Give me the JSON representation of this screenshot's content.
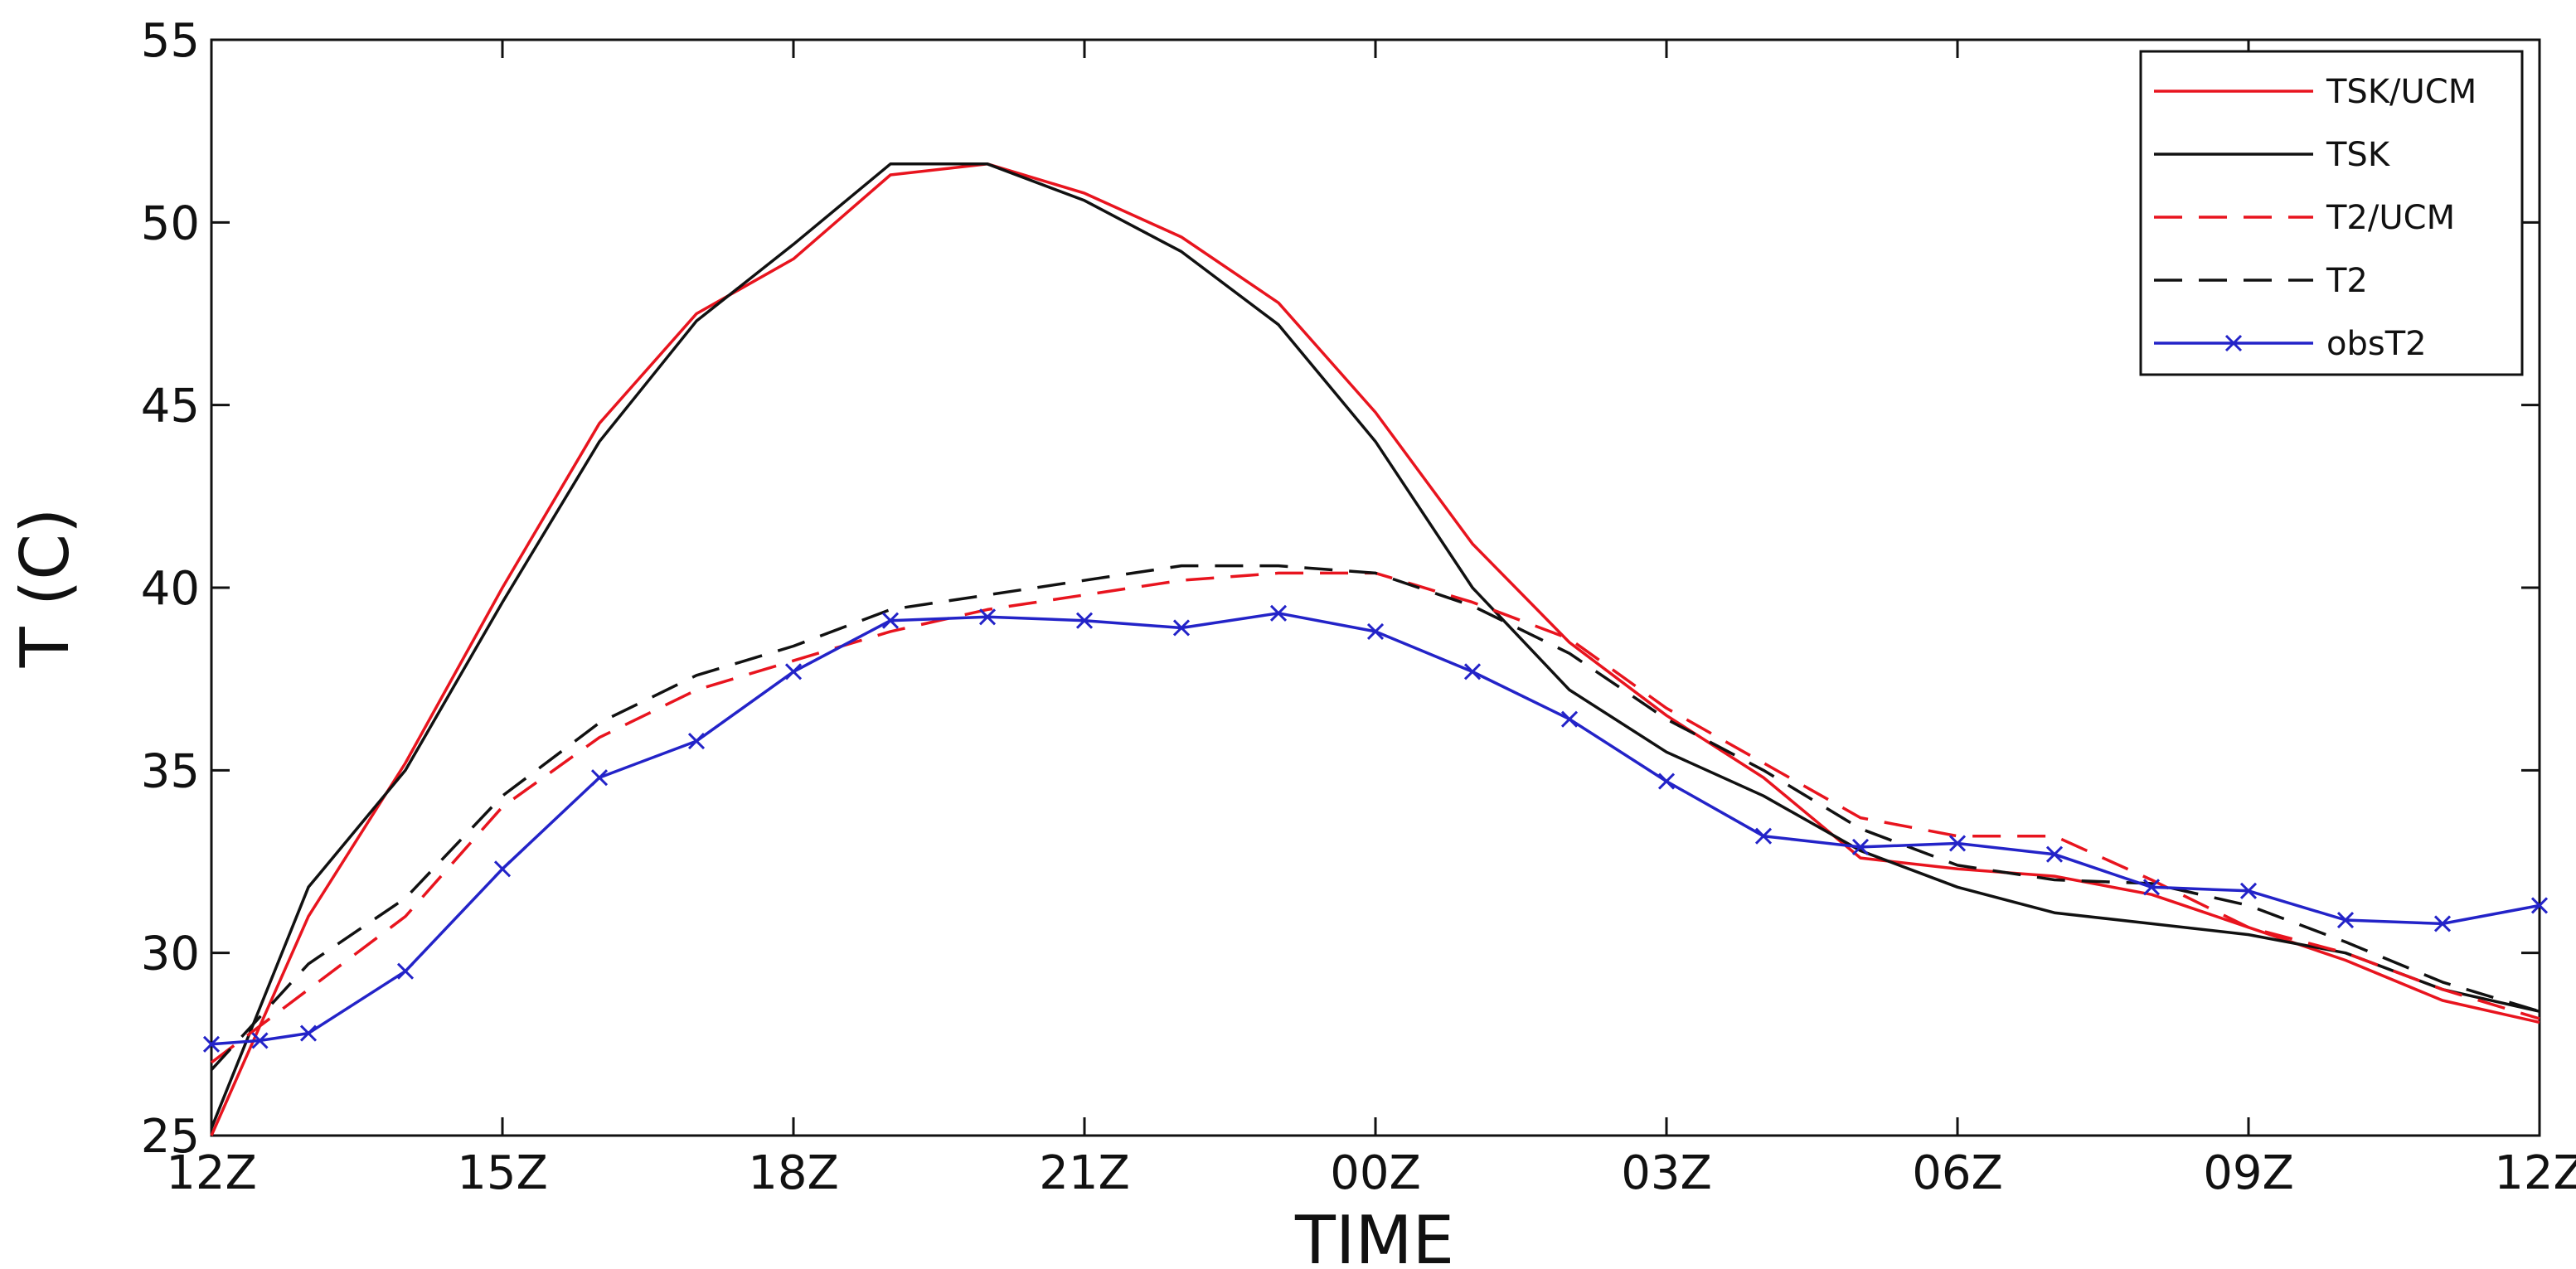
{
  "chart_data": {
    "type": "line",
    "title": "",
    "xlabel": "TIME",
    "ylabel": "T (C)",
    "x_tick_labels": [
      "12Z",
      "15Z",
      "18Z",
      "21Z",
      "00Z",
      "03Z",
      "06Z",
      "09Z",
      "12Z"
    ],
    "y_ticks": [
      25,
      30,
      35,
      40,
      45,
      50,
      55
    ],
    "xlim_hours": [
      0,
      24
    ],
    "ylim": [
      25,
      55
    ],
    "grid": false,
    "legend_position": "top-right",
    "series": [
      {
        "name": "TSK/UCM",
        "color": "#e8141e",
        "dash": "solid",
        "marker": "none",
        "x": [
          0,
          1,
          2,
          3,
          4,
          5,
          6,
          7,
          8,
          9,
          10,
          11,
          12,
          13,
          14,
          15,
          16,
          17,
          18,
          19,
          20,
          21,
          22,
          23,
          24
        ],
        "y": [
          25.0,
          31.0,
          35.2,
          40.0,
          44.5,
          47.5,
          49.0,
          51.3,
          51.6,
          50.8,
          49.6,
          47.8,
          44.8,
          41.2,
          38.5,
          36.5,
          34.8,
          32.6,
          32.3,
          32.1,
          31.6,
          30.7,
          29.8,
          28.7,
          28.1
        ]
      },
      {
        "name": "TSK",
        "color": "#111111",
        "dash": "solid",
        "marker": "none",
        "x": [
          0,
          1,
          2,
          3,
          4,
          5,
          6,
          7,
          8,
          9,
          10,
          11,
          12,
          13,
          14,
          15,
          16,
          17,
          18,
          19,
          20,
          21,
          22,
          23,
          24
        ],
        "y": [
          25.2,
          31.8,
          35.0,
          39.6,
          44.0,
          47.3,
          49.4,
          51.6,
          51.6,
          50.6,
          49.2,
          47.2,
          44.0,
          40.0,
          37.2,
          35.5,
          34.3,
          32.8,
          31.8,
          31.1,
          30.8,
          30.5,
          30.0,
          29.0,
          28.4
        ]
      },
      {
        "name": "T2/UCM",
        "color": "#e8141e",
        "dash": "dashed",
        "marker": "none",
        "x": [
          0,
          1,
          2,
          3,
          4,
          5,
          6,
          7,
          8,
          9,
          10,
          11,
          12,
          13,
          14,
          15,
          16,
          17,
          18,
          19,
          20,
          21,
          22,
          23,
          24
        ],
        "y": [
          27.0,
          29.0,
          31.0,
          34.0,
          35.9,
          37.2,
          38.0,
          38.8,
          39.4,
          39.8,
          40.2,
          40.4,
          40.4,
          39.6,
          38.6,
          36.7,
          35.2,
          33.7,
          33.2,
          33.2,
          32.0,
          30.7,
          30.0,
          29.0,
          28.2
        ]
      },
      {
        "name": "T2",
        "color": "#111111",
        "dash": "dashed",
        "marker": "none",
        "x": [
          0,
          1,
          2,
          3,
          4,
          5,
          6,
          7,
          8,
          9,
          10,
          11,
          12,
          13,
          14,
          15,
          16,
          17,
          18,
          19,
          20,
          21,
          22,
          23,
          24
        ],
        "y": [
          26.8,
          29.7,
          31.5,
          34.3,
          36.3,
          37.6,
          38.4,
          39.4,
          39.8,
          40.2,
          40.6,
          40.6,
          40.4,
          39.5,
          38.2,
          36.4,
          35.0,
          33.4,
          32.4,
          32.0,
          31.9,
          31.3,
          30.3,
          29.2,
          28.4
        ]
      },
      {
        "name": "obsT2",
        "color": "#2323c8",
        "dash": "solid",
        "marker": "x",
        "x": [
          0,
          0.5,
          1,
          2,
          3,
          4,
          5,
          6,
          7,
          8,
          9,
          10,
          11,
          12,
          13,
          14,
          15,
          16,
          17,
          18,
          19,
          20,
          21,
          22,
          23,
          24
        ],
        "y": [
          27.5,
          27.6,
          27.8,
          29.5,
          32.3,
          34.8,
          35.8,
          37.7,
          39.1,
          39.2,
          39.1,
          38.9,
          39.3,
          38.8,
          37.7,
          36.4,
          34.7,
          33.2,
          32.9,
          33.0,
          32.7,
          31.8,
          31.7,
          30.9,
          30.8,
          31.3
        ]
      }
    ]
  }
}
